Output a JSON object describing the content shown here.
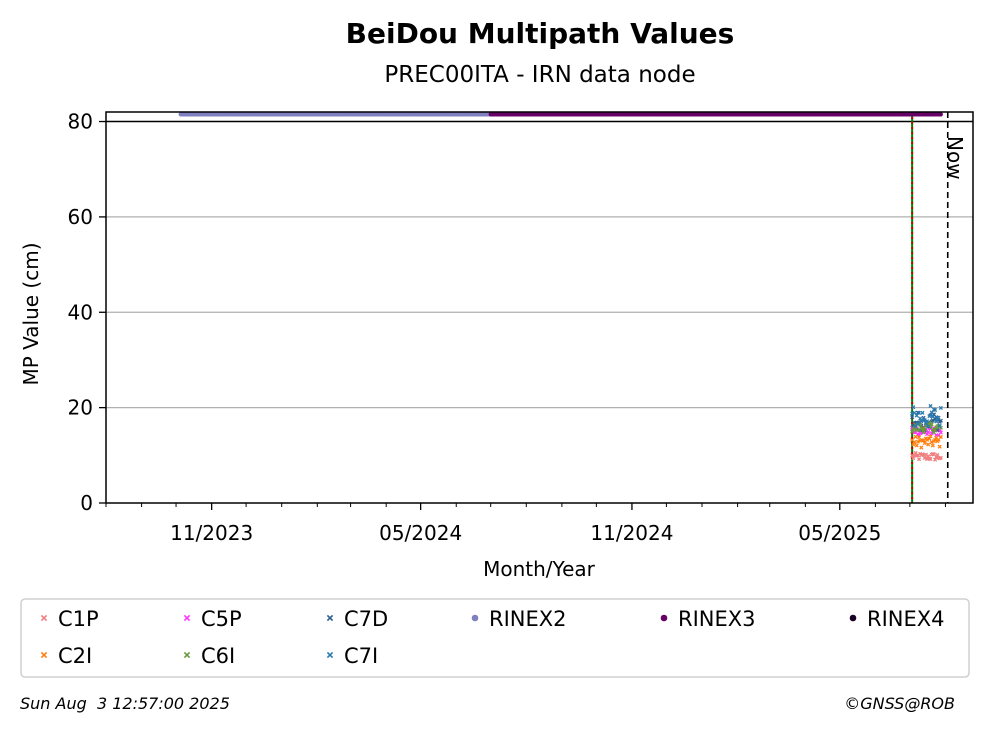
{
  "chart_data": {
    "type": "scatter",
    "title": "BeiDou Multipath Values",
    "subtitle": "PREC00ITA - IRN data node",
    "xlabel": "Month/Year",
    "ylabel": "MP Value (cm)",
    "x_ticks": [
      "11/2023",
      "05/2024",
      "11/2024",
      "05/2025"
    ],
    "xlim": [
      "2023-08-01",
      "2025-08-25"
    ],
    "ylim": [
      0,
      82
    ],
    "y_ticks": [
      "0",
      "20",
      "40",
      "60",
      "80"
    ],
    "grid": "horizontal",
    "now_label": "Now",
    "now_date": "2025-08-03",
    "series": [
      {
        "name": "C1P",
        "color": "#f08080",
        "marker": "x",
        "x_range": [
          "2025-07-03",
          "2025-07-28"
        ],
        "y_center": 9.7,
        "y_spread": 0.8
      },
      {
        "name": "C5P",
        "color": "#ff33ff",
        "marker": "x",
        "x_range": [
          "2025-07-03",
          "2025-07-28"
        ],
        "y_center": 15.0,
        "y_spread": 1.0
      },
      {
        "name": "C7D",
        "color": "#2a5f8f",
        "marker": "x",
        "x_range": [
          "2025-07-03",
          "2025-07-28"
        ],
        "y_center": 17.2,
        "y_spread": 2.0
      },
      {
        "name": "C2I",
        "color": "#ff7f0e",
        "marker": "x",
        "x_range": [
          "2025-07-03",
          "2025-07-28"
        ],
        "y_center": 12.8,
        "y_spread": 1.2
      },
      {
        "name": "C6I",
        "color": "#6a9a3a",
        "marker": "x",
        "x_range": [
          "2025-07-03",
          "2025-07-28"
        ],
        "y_center": 15.8,
        "y_spread": 1.0
      },
      {
        "name": "C7I",
        "color": "#2a7ab0",
        "marker": "x",
        "x_range": [
          "2025-07-03",
          "2025-07-28"
        ],
        "y_center": 18.0,
        "y_spread": 2.5
      },
      {
        "name": "RINEX2",
        "color": "#8080c0",
        "marker": "o",
        "x_range": [
          "2023-10-05",
          "2024-07-01"
        ],
        "y": 81.5
      },
      {
        "name": "RINEX3",
        "color": "#660066",
        "marker": "o",
        "x_range": [
          "2024-07-01",
          "2025-07-28"
        ],
        "y": 81.5
      },
      {
        "name": "RINEX4",
        "color": "#1a0026",
        "marker": "o",
        "x_range": [],
        "y": 81.5
      }
    ],
    "vertical_lines": [
      {
        "date": "2025-07-03",
        "color": "#008000",
        "style": "solid"
      },
      {
        "date": "2025-07-03",
        "color": "#cc0000",
        "style": "dotted"
      }
    ]
  },
  "footer": {
    "timestamp": "Sun Aug  3 12:57:00 2025",
    "copyright": "©GNSS@ROB"
  }
}
